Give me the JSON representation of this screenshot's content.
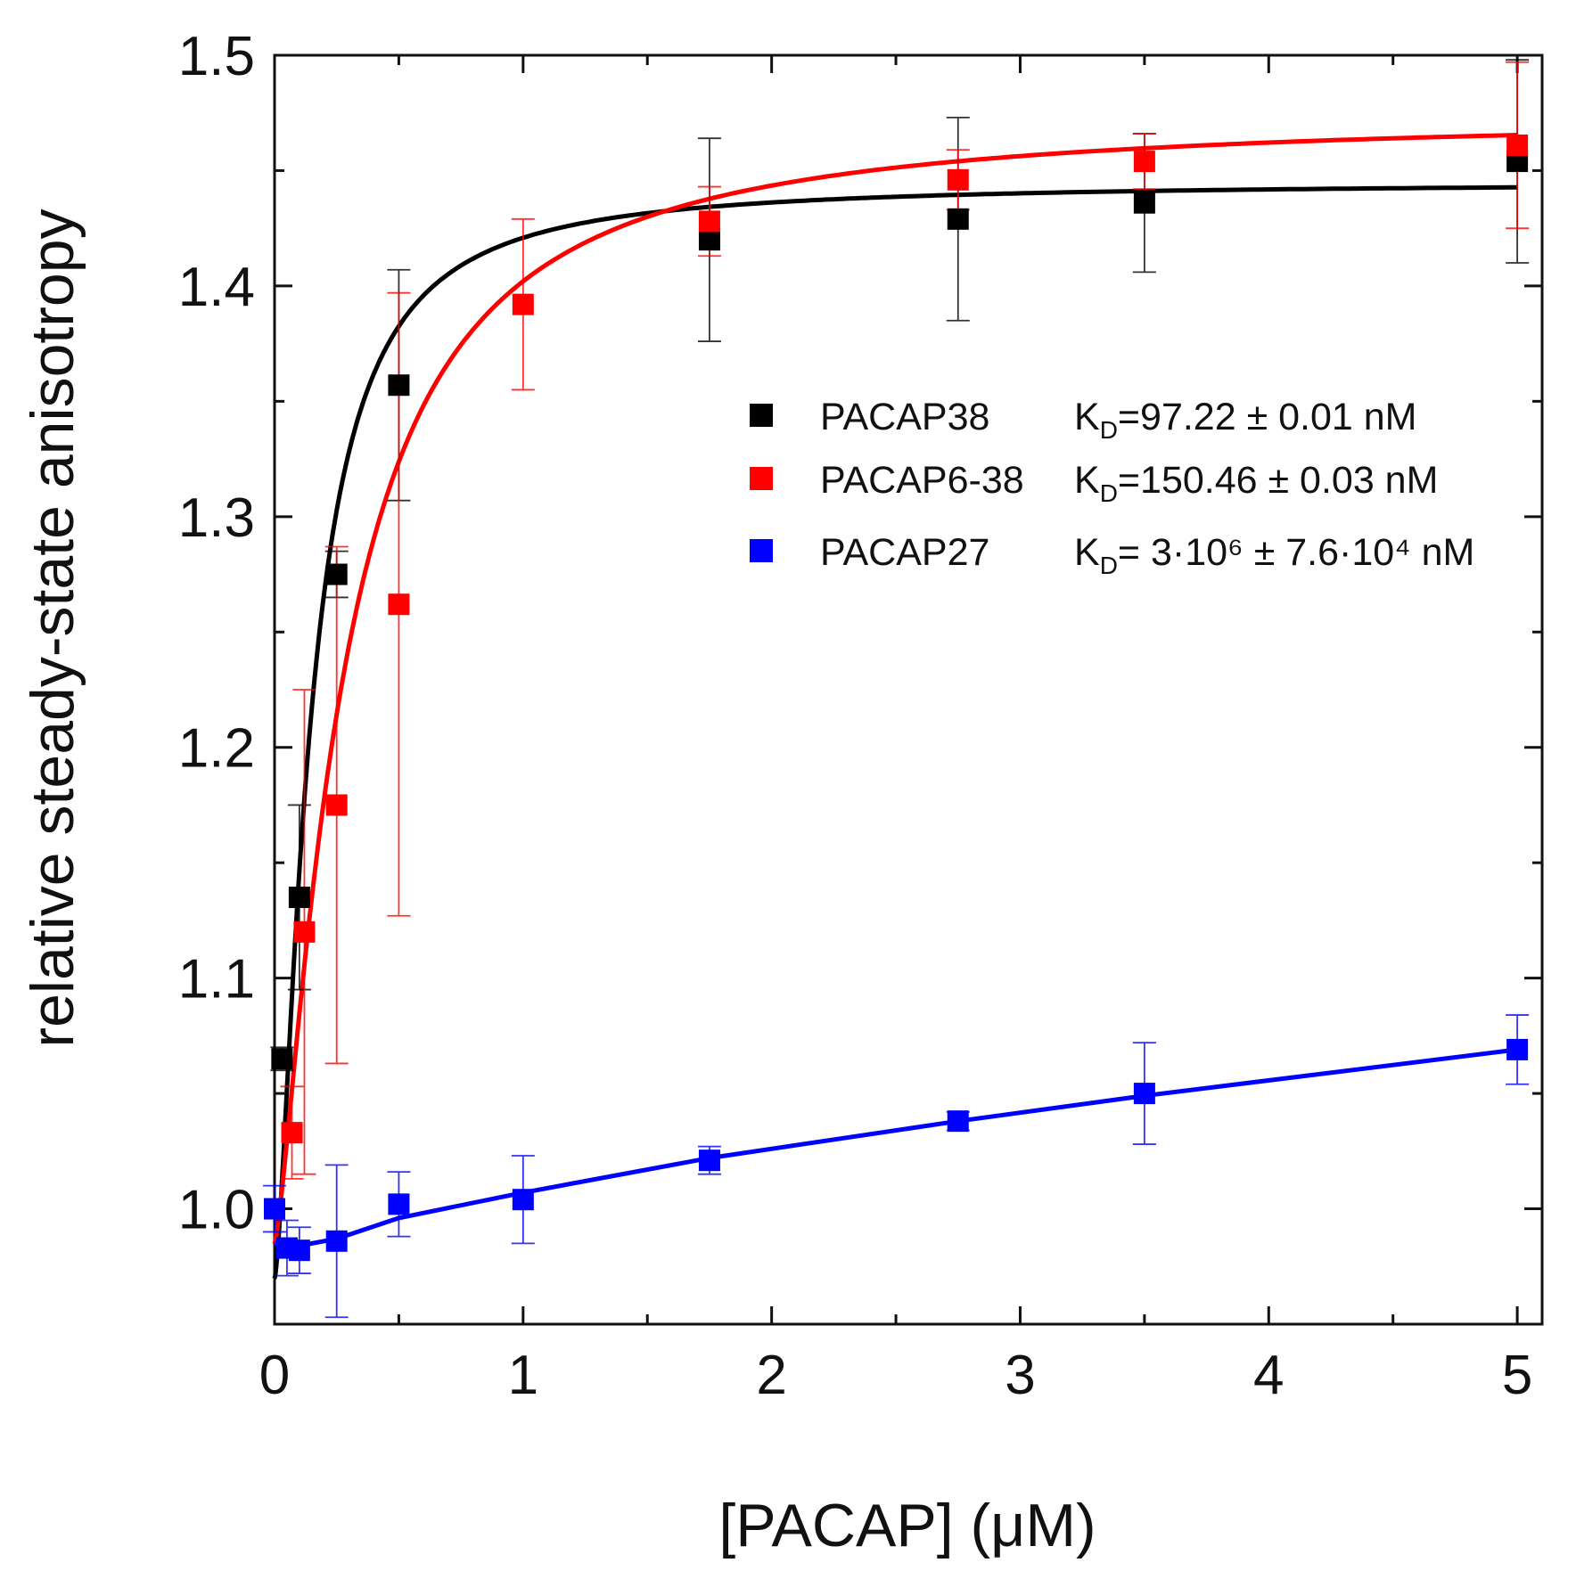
{
  "chart_data": {
    "type": "scatter",
    "title": "",
    "xlabel": "[PACAP] (μM)",
    "ylabel": "relative steady-state anisotropy",
    "xlim": [
      0,
      5.1
    ],
    "ylim": [
      0.95,
      1.5
    ],
    "x_ticks": [
      "0",
      "1",
      "2",
      "3",
      "4",
      "5"
    ],
    "y_ticks": [
      "1.0",
      "1.1",
      "1.2",
      "1.3",
      "1.4",
      "1.5"
    ],
    "x_tick_values": [
      0,
      1,
      2,
      3,
      4,
      5
    ],
    "y_tick_values": [
      1.0,
      1.1,
      1.2,
      1.3,
      1.4,
      1.5
    ],
    "legend_position": "center-right",
    "series": [
      {
        "name": "PACAP38",
        "color": "#000000",
        "kd_label": "K",
        "kd_sub": "D",
        "kd_value": "=97.22 ± 0.01 nM",
        "x": [
          0.03,
          0.1,
          0.25,
          0.5,
          1.75,
          2.75,
          3.5,
          5.0
        ],
        "y": [
          1.065,
          1.135,
          1.275,
          1.357,
          1.42,
          1.429,
          1.436,
          1.454
        ],
        "err": [
          0.005,
          0.04,
          0.01,
          0.05,
          0.044,
          0.044,
          0.03,
          0.044
        ],
        "fit": {
          "type": "hill",
          "base": 0.97,
          "amp": 0.475,
          "k": 0.142,
          "n": 1.5
        }
      },
      {
        "name": "PACAP6-38",
        "color": "#ff0000",
        "kd_label": "K",
        "kd_sub": "D",
        "kd_value": "=150.46 ± 0.03 nM",
        "x": [
          0.07,
          0.12,
          0.25,
          0.5,
          1.0,
          1.75,
          2.75,
          3.5,
          5.0
        ],
        "y": [
          1.033,
          1.12,
          1.175,
          1.262,
          1.392,
          1.428,
          1.446,
          1.454,
          1.461
        ],
        "err": [
          0.02,
          0.105,
          0.112,
          0.135,
          0.037,
          0.015,
          0.013,
          0.012,
          0.036
        ],
        "fit": {
          "type": "hill",
          "base": 0.985,
          "amp": 0.49,
          "k": 0.275,
          "n": 1.35
        }
      },
      {
        "name": "PACAP27",
        "color": "#0000ff",
        "kd_label": "K",
        "kd_sub": "D",
        "kd_value": "= 3·10⁶ ± 7.6·10⁴ nM",
        "x": [
          0.0,
          0.05,
          0.1,
          0.25,
          0.5,
          1.0,
          1.75,
          2.75,
          3.5,
          5.0
        ],
        "y": [
          1.0,
          0.983,
          0.982,
          0.986,
          1.002,
          1.004,
          1.021,
          1.038,
          1.05,
          1.069
        ],
        "err": [
          0.01,
          0.012,
          0.01,
          0.033,
          0.014,
          0.019,
          0.006,
          0.004,
          0.022,
          0.015
        ],
        "fit": {
          "type": "points",
          "x": [
            0.0,
            0.1,
            0.25,
            0.5,
            1.0,
            1.75,
            2.75,
            3.5,
            5.0
          ],
          "y": [
            0.985,
            0.984,
            0.987,
            0.996,
            1.007,
            1.022,
            1.038,
            1.049,
            1.069
          ]
        }
      }
    ]
  }
}
